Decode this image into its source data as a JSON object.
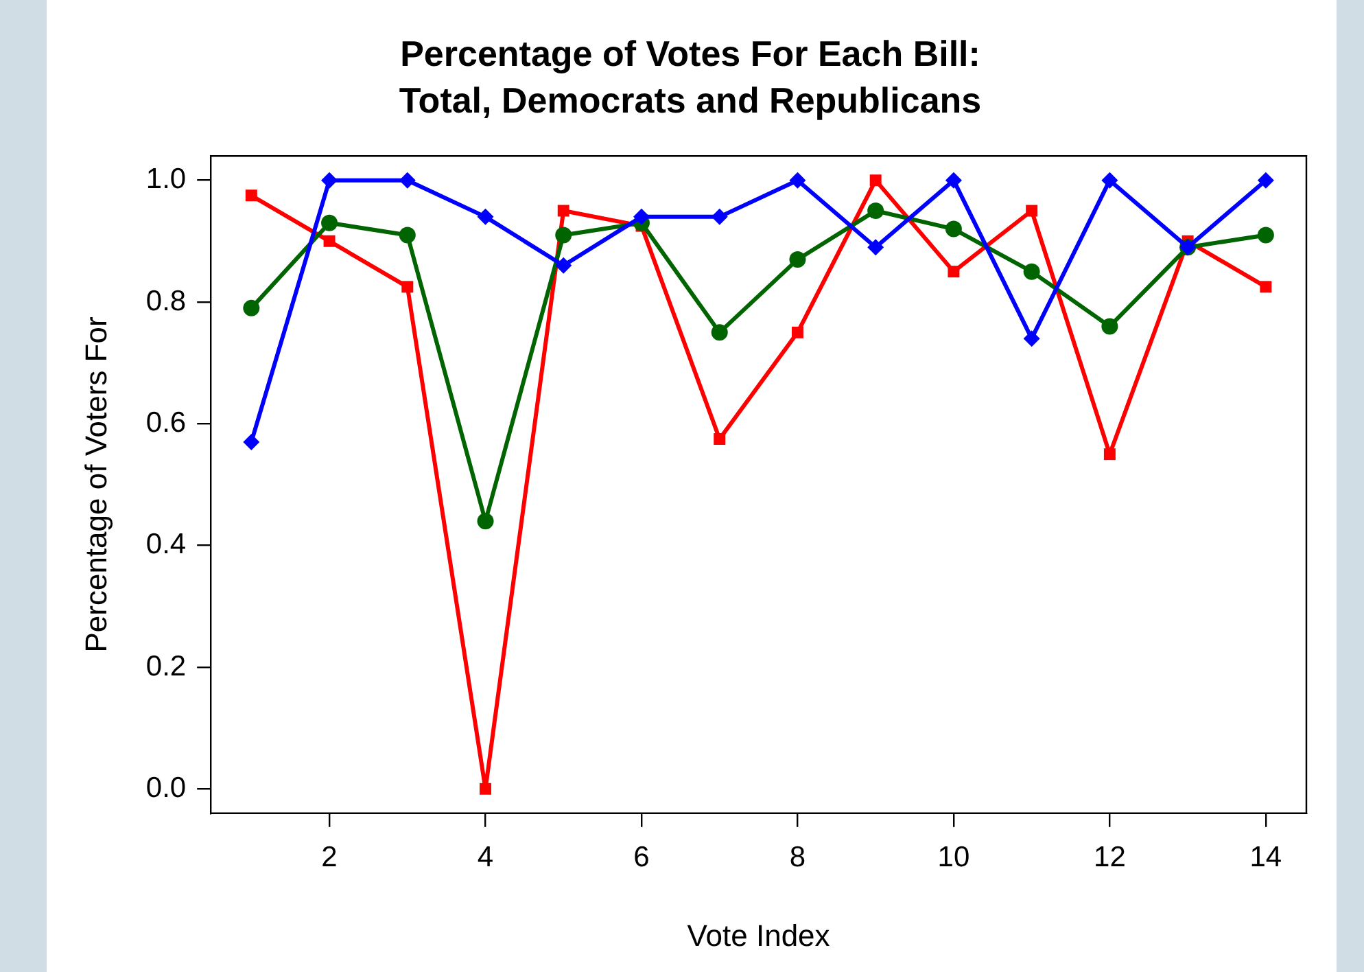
{
  "chart_data": {
    "type": "line",
    "title": "Percentage of Votes For Each Bill:\nTotal, Democrats and Republicans",
    "xlabel": "Vote Index",
    "ylabel": "Percentage of Voters For",
    "x": [
      1,
      2,
      3,
      4,
      5,
      6,
      7,
      8,
      9,
      10,
      11,
      12,
      13,
      14
    ],
    "xlim": [
      0.48,
      14.52
    ],
    "xticks": [
      2,
      4,
      6,
      8,
      10,
      12,
      14
    ],
    "ylim": [
      -0.04,
      1.04
    ],
    "yticks": [
      {
        "value": 0,
        "label": "0.0"
      },
      {
        "value": 0.2,
        "label": "0.2"
      },
      {
        "value": 0.4,
        "label": "0.4"
      },
      {
        "value": 0.6,
        "label": "0.6"
      },
      {
        "value": 0.8,
        "label": "0.8"
      },
      {
        "value": 1,
        "label": "1.0"
      }
    ],
    "grid": false,
    "legend": false,
    "line_style": "solid",
    "series": [
      {
        "color": "#0000ff",
        "marker": "diamond",
        "values": [
          0.57,
          1.0,
          1.0,
          0.94,
          0.86,
          0.94,
          0.94,
          1.0,
          0.89,
          1.0,
          0.74,
          1.0,
          0.89,
          1.0
        ]
      },
      {
        "color": "#006400",
        "marker": "circle",
        "values": [
          0.79,
          0.93,
          0.91,
          0.44,
          0.91,
          0.93,
          0.75,
          0.87,
          0.95,
          0.92,
          0.85,
          0.76,
          0.89,
          0.91
        ]
      },
      {
        "color": "#ff0000",
        "marker": "square",
        "values": [
          0.975,
          0.9,
          0.825,
          0.0,
          0.95,
          0.925,
          0.575,
          0.75,
          1.0,
          0.85,
          0.95,
          0.55,
          0.9,
          0.825
        ]
      }
    ]
  }
}
